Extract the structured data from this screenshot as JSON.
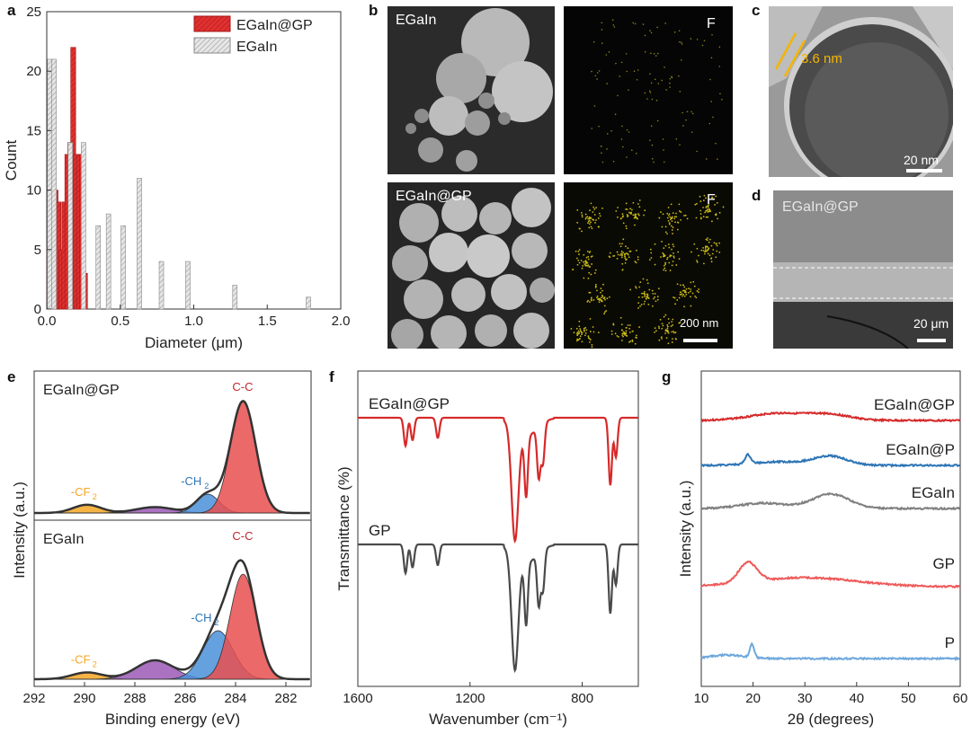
{
  "panels": {
    "a": "a",
    "b": "b",
    "c": "c",
    "d": "d",
    "e": "e",
    "f": "f",
    "g": "g"
  },
  "colors": {
    "egain_gp": "#e03030",
    "egain": "#c0c0c0",
    "cf2": "#f5a623",
    "ch2": "#4a90d9",
    "cc": "#e94f4f",
    "extra": "#9b59b6",
    "line_red": "#d62a2a",
    "line_dark": "#4a4a4a",
    "blue": "#2e75b6",
    "grey": "#7f7f7f",
    "salmon": "#ef5a5a",
    "lightblue": "#6fa8dc"
  },
  "images": {
    "b_top_left_label": "EGaIn",
    "b_top_right_label": "F",
    "b_bottom_left_label": "EGaIn@GP",
    "b_bottom_right_label": "F",
    "b_scale": "200 nm",
    "c_annot": "3.6 nm",
    "c_scale": "20 nm",
    "d_label": "EGaIn@GP",
    "d_scale": "20 μm"
  },
  "chart_data": [
    {
      "panel": "a",
      "type": "bar",
      "xlabel": "Diameter (μm)",
      "ylabel": "Count",
      "xlim": [
        0,
        2.0
      ],
      "ylim": [
        0,
        25
      ],
      "xticks": [
        "0.0",
        "0.5",
        "1.0",
        "1.5",
        "2.0"
      ],
      "yticks": [
        "0",
        "5",
        "10",
        "15",
        "20",
        "25"
      ],
      "legend_position": "top-right",
      "series": [
        {
          "name": "EGaIn@GP",
          "color": "#e03030",
          "x": [
            0.02,
            0.04,
            0.06,
            0.08,
            0.1,
            0.12,
            0.14,
            0.16,
            0.18,
            0.2,
            0.22,
            0.24,
            0.26
          ],
          "values": [
            5,
            9,
            10,
            9,
            5,
            9,
            13,
            14,
            22,
            13,
            13,
            13,
            3
          ]
        },
        {
          "name": "EGaIn",
          "color": "#c8c8c8",
          "x": [
            0.02,
            0.05,
            0.16,
            0.25,
            0.35,
            0.42,
            0.52,
            0.63,
            0.78,
            0.96,
            1.28,
            1.78
          ],
          "values": [
            21,
            21,
            14,
            14,
            7,
            8,
            7,
            11,
            4,
            4,
            2,
            1
          ]
        }
      ]
    },
    {
      "panel": "e",
      "type": "area",
      "xlabel": "Binding energy (eV)",
      "ylabel": "Intensity (a.u.)",
      "xlim": [
        292,
        281
      ],
      "xticks": [
        "292",
        "290",
        "288",
        "286",
        "284",
        "282"
      ],
      "subplots": [
        {
          "label": "EGaIn@GP",
          "peaks": [
            {
              "name": "-CF2",
              "center": 289.9,
              "height": 0.07,
              "width": 0.55,
              "color": "#f5a623"
            },
            {
              "name": "",
              "center": 287.2,
              "height": 0.05,
              "width": 0.75,
              "color": "#9b59b6"
            },
            {
              "name": "-CH2",
              "center": 285.1,
              "height": 0.16,
              "width": 0.45,
              "color": "#4a90d9"
            },
            {
              "name": "C-C",
              "center": 283.7,
              "height": 0.95,
              "width": 0.5,
              "color": "#e94f4f"
            }
          ]
        },
        {
          "label": "EGaIn",
          "peaks": [
            {
              "name": "-CF2",
              "center": 289.9,
              "height": 0.05,
              "width": 0.6,
              "color": "#f5a623"
            },
            {
              "name": "",
              "center": 287.2,
              "height": 0.14,
              "width": 0.75,
              "color": "#9b59b6"
            },
            {
              "name": "-CH2",
              "center": 284.7,
              "height": 0.36,
              "width": 0.6,
              "color": "#4a90d9"
            },
            {
              "name": "C-C",
              "center": 283.7,
              "height": 0.78,
              "width": 0.52,
              "color": "#e94f4f"
            }
          ]
        }
      ],
      "peak_labels": {
        "cf2": "-CF",
        "cf2_sub": "2",
        "ch2": "-CH",
        "ch2_sub": "2",
        "cc": "C-C"
      }
    },
    {
      "panel": "f",
      "type": "line",
      "xlabel": "Wavenumber (cm⁻¹)",
      "ylabel": "Transmittance (%)",
      "xlim": [
        1600,
        600
      ],
      "xticks": [
        "1600",
        "1200",
        "800"
      ],
      "series": [
        {
          "name": "EGaIn@GP",
          "color": "#d62a2a",
          "dips": [
            [
              1430,
              0.25
            ],
            [
              1405,
              0.2
            ],
            [
              1315,
              0.18
            ],
            [
              1040,
              1.0
            ],
            [
              1000,
              0.55
            ],
            [
              955,
              0.45
            ],
            [
              940,
              0.35
            ],
            [
              700,
              0.6
            ],
            [
              680,
              0.35
            ]
          ]
        },
        {
          "name": "GP",
          "color": "#4a4a4a",
          "dips": [
            [
              1430,
              0.25
            ],
            [
              1405,
              0.2
            ],
            [
              1315,
              0.18
            ],
            [
              1040,
              1.0
            ],
            [
              1000,
              0.55
            ],
            [
              955,
              0.45
            ],
            [
              940,
              0.35
            ],
            [
              700,
              0.6
            ],
            [
              680,
              0.35
            ]
          ]
        }
      ]
    },
    {
      "panel": "g",
      "type": "line",
      "xlabel": "2θ (degrees)",
      "ylabel": "Intensity (a.u.)",
      "xlim": [
        10,
        60
      ],
      "xticks": [
        "10",
        "20",
        "30",
        "40",
        "50",
        "60"
      ],
      "series": [
        {
          "name": "EGaIn@GP",
          "color": "#d62a2a"
        },
        {
          "name": "EGaIn@P",
          "color": "#2e75b6"
        },
        {
          "name": "EGaIn",
          "color": "#7f7f7f"
        },
        {
          "name": "GP",
          "color": "#ef5a5a"
        },
        {
          "name": "P",
          "color": "#6fa8dc"
        }
      ]
    }
  ]
}
